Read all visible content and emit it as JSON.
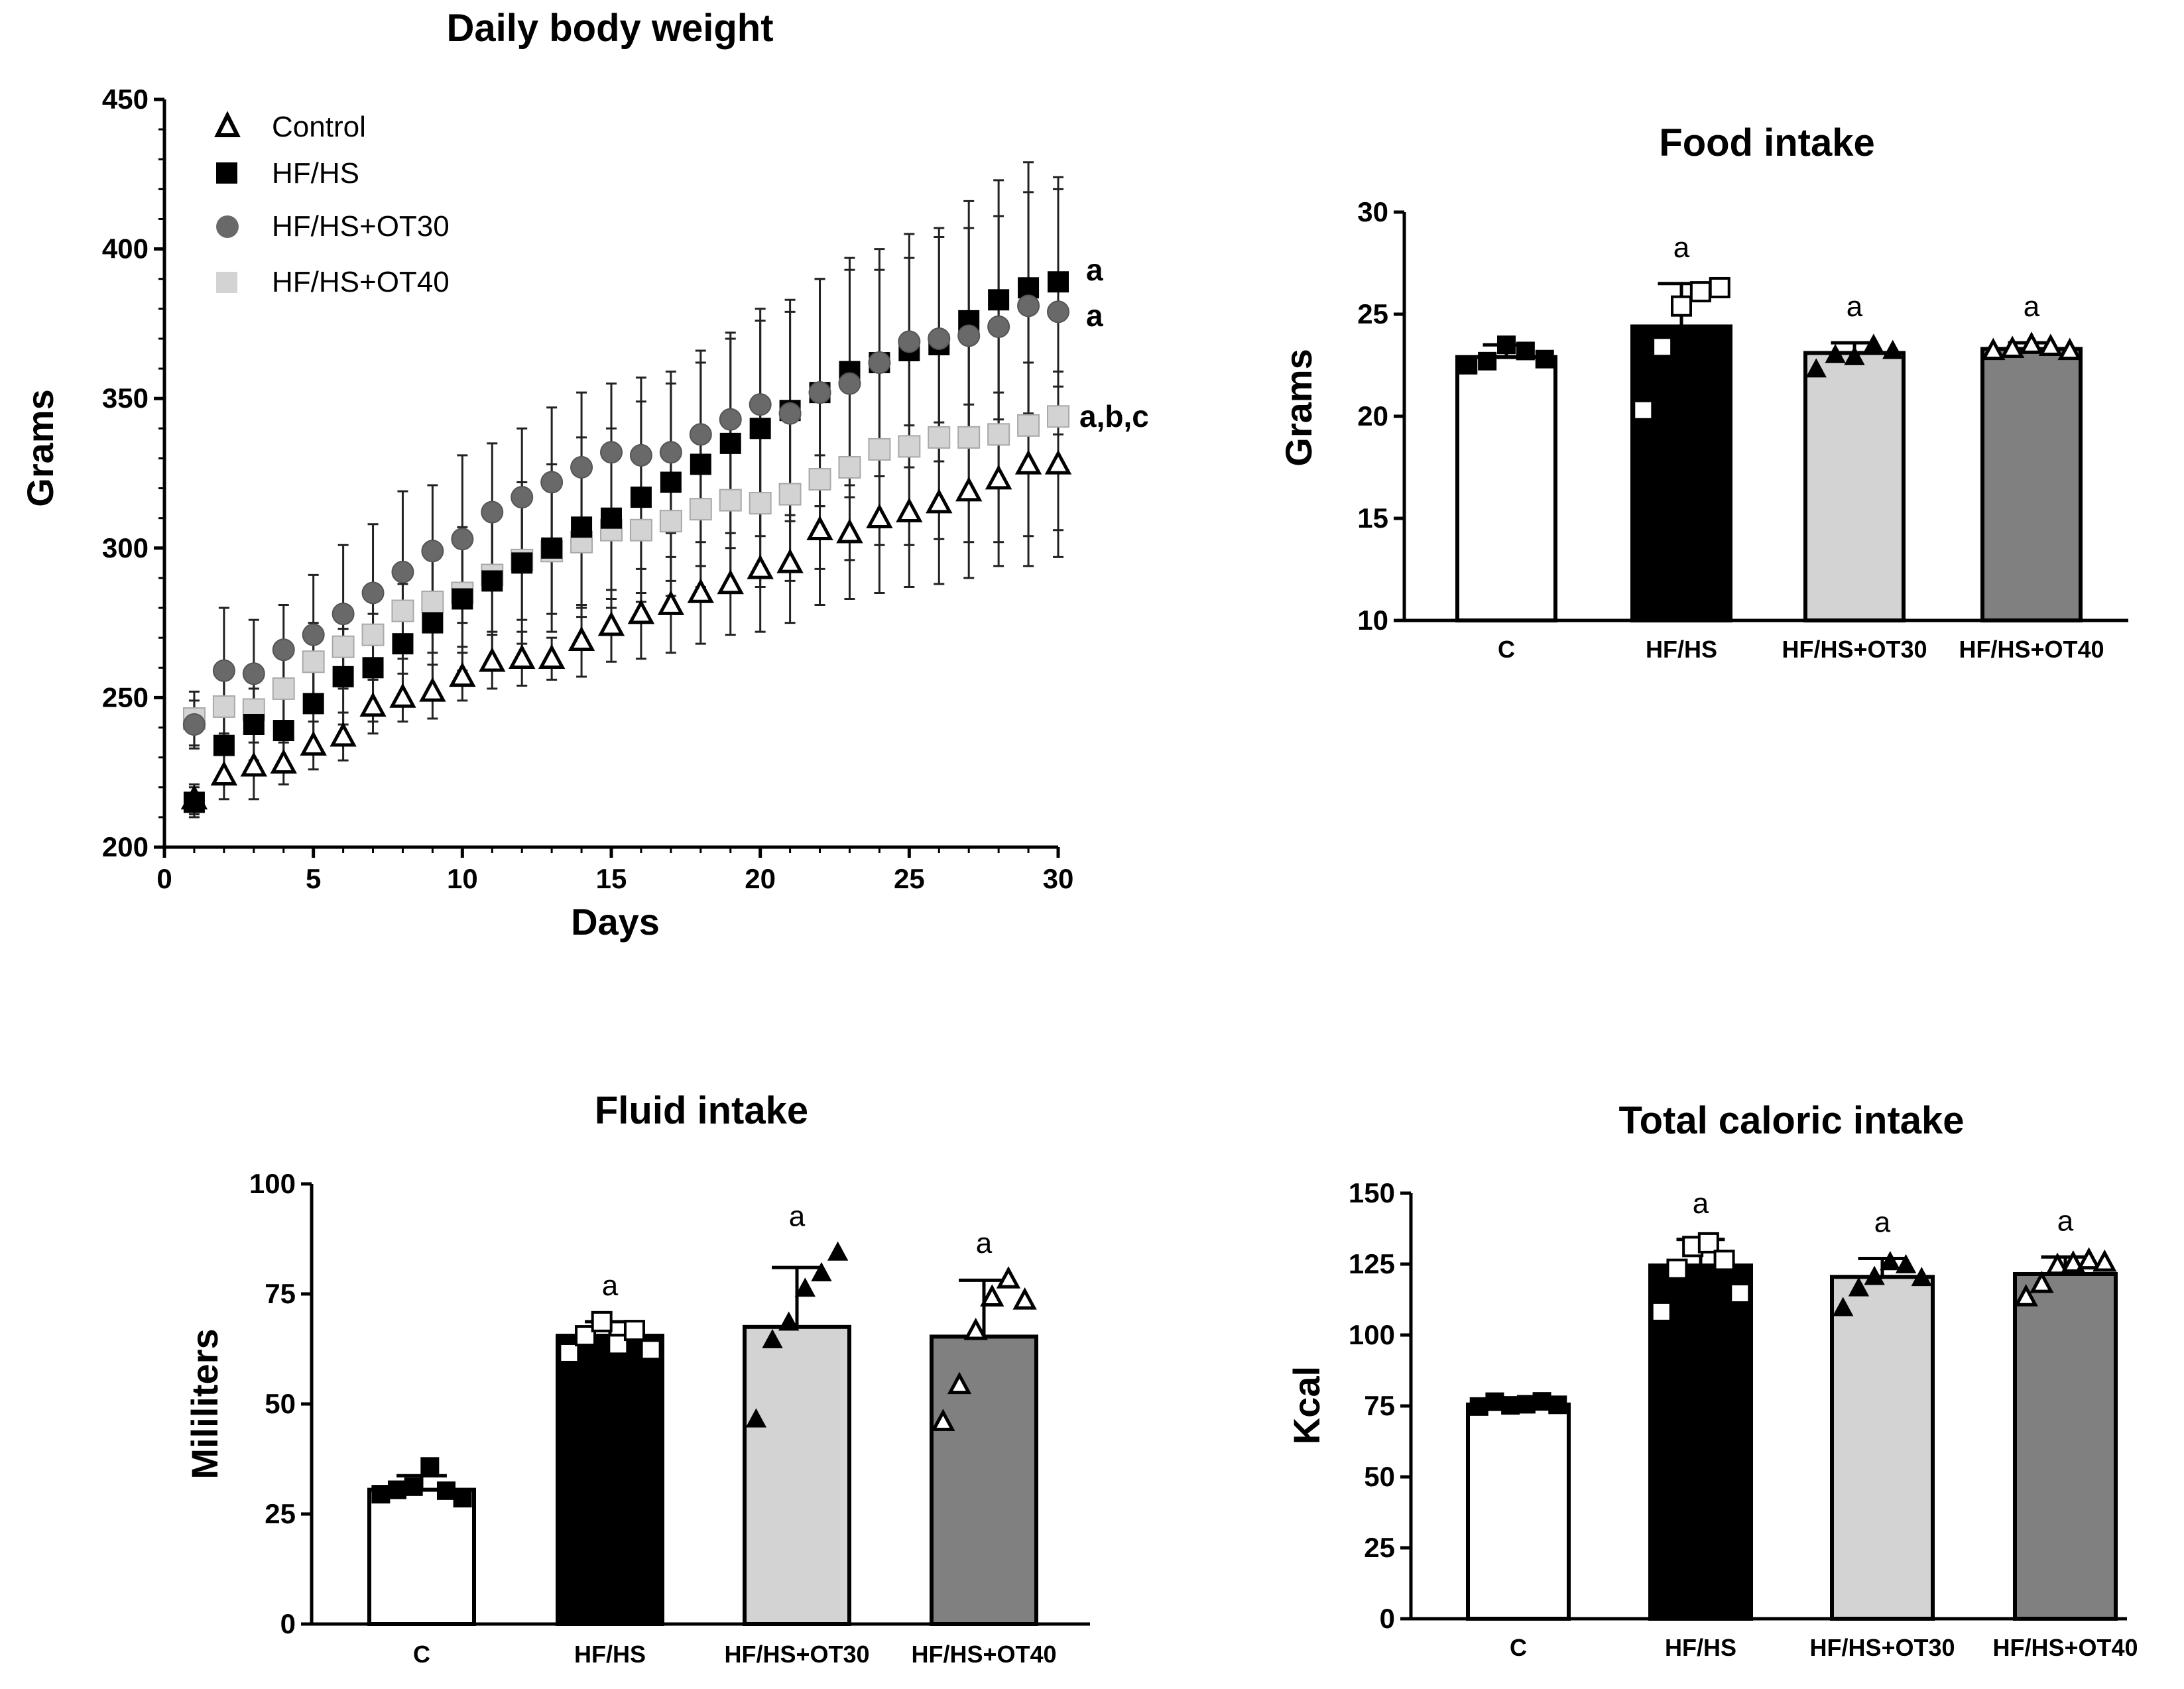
{
  "chart_data": [
    {
      "type": "scatter",
      "title": "Daily body weight",
      "xlabel": "Days",
      "ylabel": "Grams",
      "xlim": [
        0,
        30
      ],
      "ylim": [
        200,
        450
      ],
      "xticks": [
        0,
        5,
        10,
        15,
        20,
        25,
        30
      ],
      "yticks": [
        200,
        250,
        300,
        350,
        400,
        450
      ],
      "legend": "top-left",
      "x": [
        1,
        2,
        3,
        4,
        5,
        6,
        7,
        8,
        9,
        10,
        11,
        12,
        13,
        14,
        15,
        16,
        17,
        18,
        19,
        20,
        21,
        22,
        23,
        24,
        25,
        26,
        27,
        28,
        29,
        30
      ],
      "series": [
        {
          "name": "Control",
          "marker": "triangle-open",
          "color": "#ffffff",
          "values": [
            216,
            224,
            227,
            228,
            234,
            237,
            247,
            250,
            252,
            257,
            262,
            263,
            263,
            269,
            274,
            278,
            281,
            285,
            288,
            293,
            295,
            306,
            305,
            310,
            312,
            315,
            319,
            323,
            328,
            328
          ],
          "errors": [
            5,
            8,
            11,
            7,
            8,
            8,
            9,
            8,
            9,
            8,
            9,
            9,
            7,
            12,
            12,
            15,
            16,
            17,
            17,
            21,
            20,
            25,
            22,
            25,
            25,
            27,
            29,
            29,
            34,
            31
          ],
          "annotation": ""
        },
        {
          "name": "HF/HS",
          "marker": "square-filled",
          "color": "#000000",
          "values": [
            215,
            234,
            241,
            239,
            248,
            257,
            260,
            268,
            275,
            283,
            289,
            295,
            300,
            307,
            310,
            317,
            322,
            328,
            335,
            340,
            346,
            352,
            359,
            362,
            366,
            368,
            376,
            383,
            387,
            389
          ],
          "errors": [
            5,
            10,
            12,
            12,
            14,
            16,
            18,
            20,
            22,
            24,
            26,
            27,
            28,
            30,
            30,
            32,
            33,
            34,
            35,
            36,
            37,
            38,
            38,
            38,
            39,
            39,
            40,
            40,
            42,
            35
          ],
          "annotation": "a"
        },
        {
          "name": "HF/HS+OT30",
          "marker": "circle-filled",
          "color": "#696969",
          "values": [
            241,
            259,
            258,
            266,
            271,
            278,
            285,
            292,
            299,
            303,
            312,
            317,
            322,
            327,
            332,
            331,
            332,
            338,
            343,
            348,
            345,
            352,
            355,
            362,
            369,
            370,
            371,
            374,
            381,
            379
          ],
          "errors": [
            8,
            21,
            18,
            15,
            20,
            23,
            23,
            27,
            22,
            28,
            23,
            23,
            25,
            25,
            23,
            26,
            27,
            28,
            29,
            32,
            34,
            38,
            38,
            31,
            28,
            34,
            36,
            37,
            38,
            41
          ],
          "annotation": "a"
        },
        {
          "name": "HF/HS+OT40",
          "marker": "square-light",
          "color": "#d3d3d3",
          "values": [
            243,
            247,
            246,
            253,
            262,
            267,
            271,
            279,
            282,
            285,
            291,
            296,
            299,
            302,
            306,
            306,
            309,
            313,
            316,
            315,
            318,
            323,
            327,
            333,
            334,
            337,
            337,
            338,
            341,
            344
          ],
          "errors": [
            9,
            10,
            11,
            12,
            13,
            14,
            15,
            16,
            17,
            18,
            19,
            20,
            21,
            22,
            23,
            24,
            25,
            26,
            27,
            28,
            29,
            30,
            31,
            32,
            33,
            34,
            35,
            36,
            37,
            38
          ],
          "annotation": "a,b,c"
        }
      ]
    },
    {
      "type": "bar",
      "title": "Food intake",
      "ylabel": "Grams",
      "ylim": [
        10,
        30
      ],
      "yticks": [
        10,
        15,
        20,
        25,
        30
      ],
      "categories": [
        "C",
        "HF/HS",
        "HF/HS+OT30",
        "HF/HS+OT40"
      ],
      "values": [
        22.9,
        24.4,
        23.1,
        23.3
      ],
      "errors": [
        0.6,
        2.1,
        0.5,
        0.3
      ],
      "fills": [
        "#ffffff",
        "#000000",
        "#d3d3d3",
        "#808080"
      ],
      "markers": [
        "square-filled",
        "square-open",
        "triangle-filled",
        "triangle-open"
      ],
      "points": [
        [
          22.5,
          22.7,
          23.5,
          23.2,
          22.8
        ],
        [
          20.3,
          23.4,
          25.4,
          26.1,
          26.3
        ],
        [
          22.3,
          23.0,
          22.9,
          23.5,
          23.2
        ],
        [
          23.2,
          23.3,
          23.5,
          23.4,
          23.2
        ]
      ],
      "annotations": [
        "",
        "a",
        "a",
        "a"
      ]
    },
    {
      "type": "bar",
      "title": "Fluid intake",
      "ylabel": "Mililiters",
      "ylim": [
        0,
        100
      ],
      "yticks": [
        0,
        25,
        50,
        75,
        100
      ],
      "categories": [
        "C",
        "HF/HS",
        "HF/HS+OT30",
        "HF/HS+OT40"
      ],
      "values": [
        30.5,
        65.5,
        67.5,
        65.3
      ],
      "errors": [
        3.2,
        3.2,
        13.5,
        12.8
      ],
      "fills": [
        "#ffffff",
        "#000000",
        "#d3d3d3",
        "#808080"
      ],
      "markers": [
        "square-filled",
        "square-open",
        "triangle-filled",
        "triangle-open"
      ],
      "points": [
        [
          29.5,
          30.5,
          31.2,
          35.8,
          30.3,
          28.6
        ],
        [
          61.6,
          65.5,
          68.7,
          63.5,
          66.7,
          62.3
        ],
        [
          46.5,
          64.5,
          68.5,
          76.2,
          79.7,
          84.4
        ],
        [
          45.9,
          54.3,
          66.6,
          74.2,
          78.3,
          73.5
        ]
      ],
      "annotations": [
        "",
        "a",
        "a",
        "a"
      ]
    },
    {
      "type": "bar",
      "title": "Total caloric intake",
      "ylabel": "Kcal",
      "ylim": [
        0,
        150
      ],
      "yticks": [
        0,
        25,
        50,
        75,
        100,
        125,
        150
      ],
      "categories": [
        "C",
        "HF/HS",
        "HF/HS+OT30",
        "HF/HS+OT40"
      ],
      "values": [
        75.5,
        124.5,
        120.5,
        121.5
      ],
      "errors": [
        1.6,
        9.2,
        6.5,
        6.0
      ],
      "fills": [
        "#ffffff",
        "#000000",
        "#d3d3d3",
        "#808080"
      ],
      "markers": [
        "square-filled",
        "square-open",
        "triangle-filled",
        "triangle-open"
      ],
      "points": [
        [
          74.8,
          76.5,
          75.2,
          75.6,
          76.6,
          75.4
        ],
        [
          108.2,
          123.2,
          131.2,
          132.5,
          126.3,
          114.7
        ],
        [
          109.5,
          116.5,
          120.5,
          125.7,
          124.6,
          120.1
        ],
        [
          113.3,
          118.0,
          124.4,
          125.2,
          126.3,
          125.5
        ]
      ],
      "annotations": [
        "",
        "a",
        "a",
        "a"
      ]
    }
  ]
}
